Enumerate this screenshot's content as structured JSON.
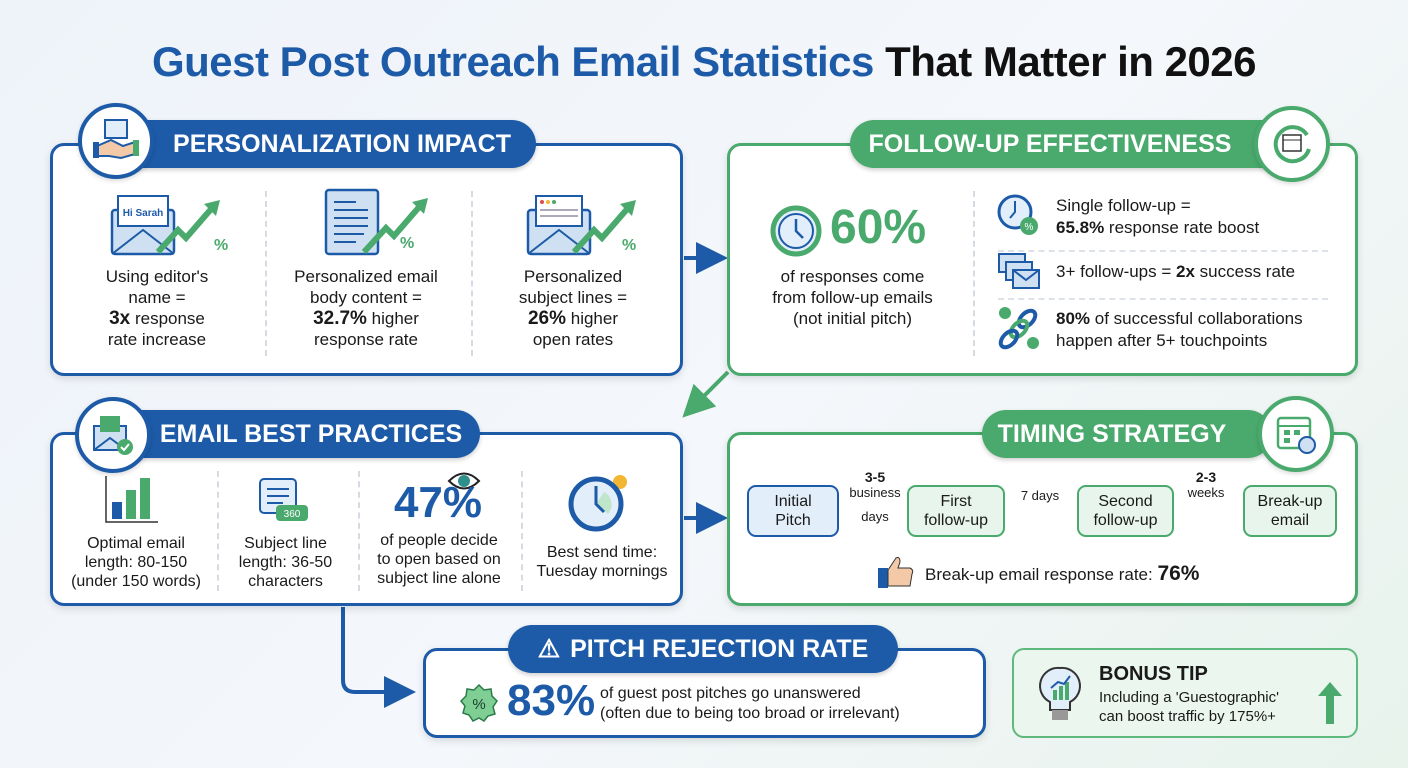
{
  "title": {
    "part1": "Guest Post Outreach Email Statistics",
    "part2": "That Matter in 2026"
  },
  "colors": {
    "blue": "#1d5ba8",
    "green": "#4aa96c"
  },
  "personalization": {
    "heading": "PERSONALIZATION IMPACT",
    "icon": "handshake-email-icon",
    "items": [
      {
        "icon_text": "Hi Sarah",
        "l1": "Using editor's",
        "l2": "name =",
        "stat": "3x",
        "l3": " response",
        "l4": "rate increase"
      },
      {
        "l1": "Personalized email",
        "l2": "body content =",
        "stat": "32.7%",
        "l3": " higher",
        "l4": "response rate"
      },
      {
        "l1": "Personalized",
        "l2": "subject lines =",
        "stat": "26%",
        "l3": " higher",
        "l4": "open rates"
      }
    ],
    "pct_symbol": "%"
  },
  "followup": {
    "heading": "FOLLOW-UP EFFECTIVENESS",
    "icon": "calendar-cycle-icon",
    "main_stat": "60%",
    "main_l1": "of responses come",
    "main_l2": "from follow-up emails",
    "main_l3": "(not initial pitch)",
    "items": [
      {
        "icon": "clock-percent-icon",
        "pre": "Single follow-up =",
        "stat": "65.8%",
        "post": " response rate boost"
      },
      {
        "icon": "emails-icon",
        "pre": "3+ follow-ups = ",
        "stat": "2x",
        "post": " success rate"
      },
      {
        "icon": "chain-link-icon",
        "stat": "80%",
        "post": " of successful collaborations",
        "post2": "happen after 5+ touchpoints"
      }
    ]
  },
  "best_practices": {
    "heading": "EMAIL BEST PRACTICES",
    "icon": "email-check-icon",
    "items": [
      {
        "icon": "bar-chart-icon",
        "l1": "Optimal email",
        "l2": "length: 80-150",
        "l3": "(under 150 words)"
      },
      {
        "icon": "message-icon",
        "badge": "360",
        "l1": "Subject line",
        "l2": "length: 36-50",
        "l3": "characters"
      },
      {
        "icon": "eye-icon",
        "stat": "47%",
        "l1": "of people decide",
        "l2": "to open based on",
        "l3": "subject line alone"
      },
      {
        "icon": "alarm-clock-icon",
        "l1": "Best send time:",
        "l2": "Tuesday mornings"
      }
    ]
  },
  "timing": {
    "heading": "TIMING STRATEGY",
    "icon": "calendar-clock-icon",
    "steps": [
      {
        "l1": "Initial",
        "l2": "Pitch"
      },
      {
        "l1": "First",
        "l2": "follow-up"
      },
      {
        "l1": "Second",
        "l2": "follow-up"
      },
      {
        "l1": "Break-up",
        "l2": "email"
      }
    ],
    "gaps": [
      {
        "top": "3-5",
        "mid": "business",
        "bot": "days"
      },
      {
        "mid": "7 days"
      },
      {
        "top": "2-3",
        "mid": "weeks"
      }
    ],
    "note": "Break-up email response rate: ",
    "note_stat": "76%",
    "note_icon": "thumbs-up-icon"
  },
  "rejection": {
    "heading": "PITCH REJECTION RATE",
    "icon": "warning-icon",
    "stat": "83%",
    "l1": "of guest post pitches go unanswered",
    "l2": "(often due to being too broad or irrelevant)",
    "stat_icon": "percent-badge-icon"
  },
  "bonus": {
    "heading": "BONUS TIP",
    "l1": "Including a 'Guestographic'",
    "l2": "can boost traffic by 175%+",
    "icon": "lightbulb-chart-icon",
    "arrow_icon": "up-arrow-icon"
  }
}
